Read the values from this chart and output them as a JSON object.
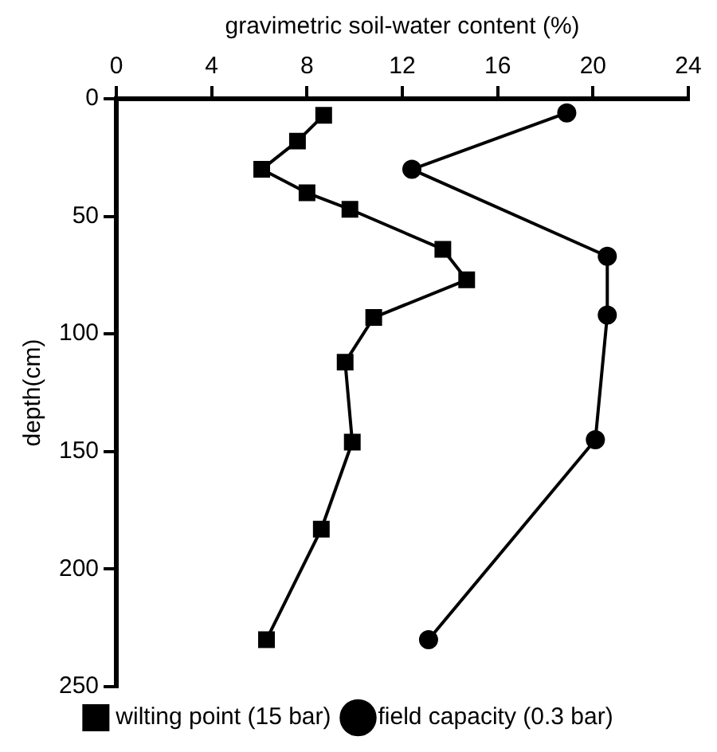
{
  "chart_data": {
    "type": "line",
    "xlabel": "gravimetric soil-water content (%)",
    "ylabel": "depth(cm)",
    "xlim": [
      0,
      24
    ],
    "xticks": [
      0,
      4,
      8,
      12,
      16,
      20,
      24
    ],
    "ylim": [
      250,
      0
    ],
    "yticks": [
      0,
      50,
      100,
      150,
      200,
      250
    ],
    "grid": false,
    "legend": "bottom",
    "line_style": "solid",
    "series": [
      {
        "name": "wilting point (15 bar)",
        "color": "#000000",
        "marker": "square",
        "x": [
          8.7,
          7.6,
          6.1,
          8.0,
          9.8,
          13.7,
          14.7,
          10.8,
          9.6,
          9.9,
          8.6,
          6.3
        ],
        "values": [
          7,
          18,
          30,
          40,
          47,
          64,
          77,
          93,
          112,
          146,
          183,
          230
        ]
      },
      {
        "name": "field capacity (0.3 bar)",
        "color": "#000000",
        "marker": "circle",
        "x": [
          18.9,
          12.4,
          20.6,
          20.6,
          20.1,
          13.1
        ],
        "values": [
          6,
          30,
          67,
          92,
          145,
          230
        ]
      }
    ]
  }
}
